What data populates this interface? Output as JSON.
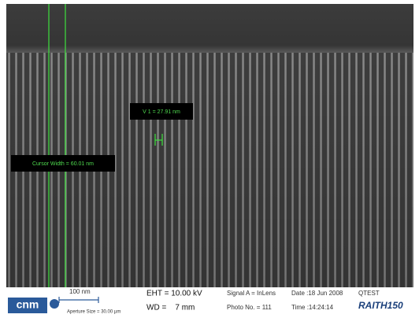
{
  "overlays": {
    "measurement": "V 1 = 27.91 nm",
    "cursor_width": "Cursor Width = 60.01 nm"
  },
  "info_bar": {
    "logo": "cnm",
    "scale": "100 nm",
    "aperture": "Aperture Size = 30.00 µm",
    "eht": "EHT = 10.00 kV",
    "wd": "WD =    7 mm",
    "signal": "Signal A = InLens",
    "photo": "Photo No. = 111",
    "date": "Date :18 Jun 2008",
    "time": "Time :14:24:14",
    "user": "QTEST",
    "instrument": "RAITH150"
  }
}
